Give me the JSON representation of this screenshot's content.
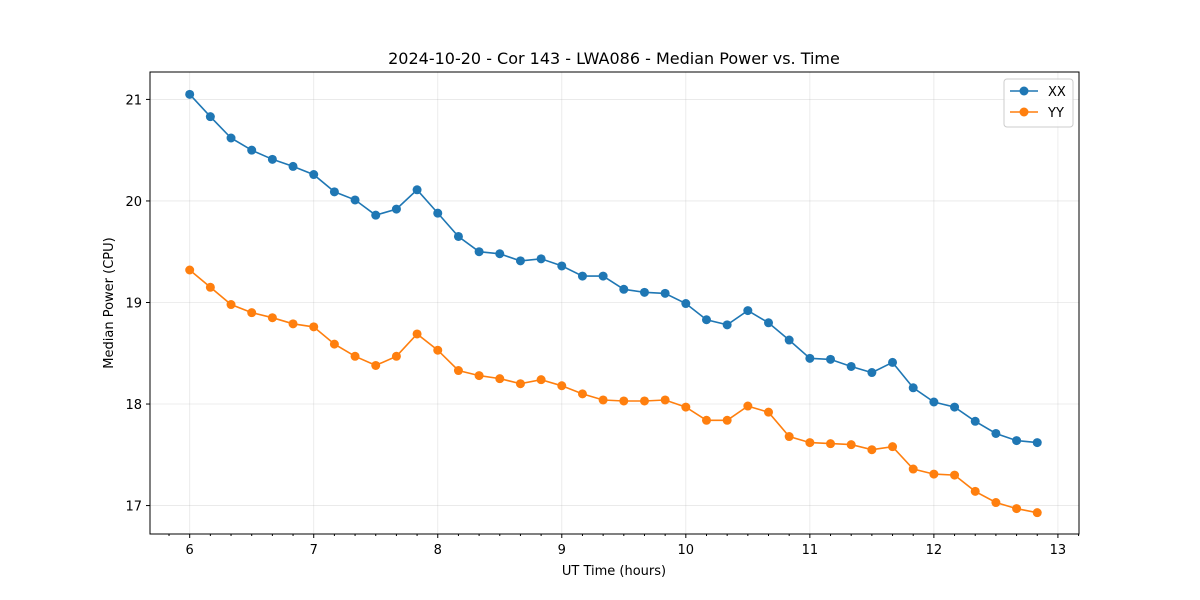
{
  "chart_data": {
    "type": "line",
    "title": "2024-10-20 - Cor 143 - LWA086 - Median Power vs. Time",
    "xlabel": "UT Time (hours)",
    "ylabel": "Median Power (CPU)",
    "xlim": [
      5.68,
      13.17
    ],
    "ylim": [
      16.72,
      21.27
    ],
    "xticks": [
      6,
      7,
      8,
      9,
      10,
      11,
      12,
      13
    ],
    "yticks": [
      17,
      18,
      19,
      20,
      21
    ],
    "grid": true,
    "legend_position": "top-right",
    "series": [
      {
        "name": "XX",
        "color": "#1f77b4",
        "x": [
          6.0,
          6.1667,
          6.3333,
          6.5,
          6.6667,
          6.8333,
          7.0,
          7.1667,
          7.3333,
          7.5,
          7.6667,
          7.8333,
          8.0,
          8.1667,
          8.3333,
          8.5,
          8.6667,
          8.8333,
          9.0,
          9.1667,
          9.3333,
          9.5,
          9.6667,
          9.8333,
          10.0,
          10.1667,
          10.3333,
          10.5,
          10.6667,
          10.8333,
          11.0,
          11.1667,
          11.3333,
          11.5,
          11.6667,
          11.8333,
          12.0,
          12.1667,
          12.3333,
          12.5,
          12.6667,
          12.8333
        ],
        "y": [
          21.05,
          20.83,
          20.62,
          20.5,
          20.41,
          20.34,
          20.26,
          20.09,
          20.01,
          19.86,
          19.92,
          20.11,
          19.88,
          19.65,
          19.5,
          19.48,
          19.41,
          19.43,
          19.36,
          19.26,
          19.26,
          19.13,
          19.1,
          19.09,
          18.99,
          18.83,
          18.78,
          18.92,
          18.8,
          18.63,
          18.45,
          18.44,
          18.37,
          18.31,
          18.41,
          18.16,
          18.02,
          17.97,
          17.83,
          17.71,
          17.64,
          17.62
        ]
      },
      {
        "name": "YY",
        "color": "#ff7f0e",
        "x": [
          6.0,
          6.1667,
          6.3333,
          6.5,
          6.6667,
          6.8333,
          7.0,
          7.1667,
          7.3333,
          7.5,
          7.6667,
          7.8333,
          8.0,
          8.1667,
          8.3333,
          8.5,
          8.6667,
          8.8333,
          9.0,
          9.1667,
          9.3333,
          9.5,
          9.6667,
          9.8333,
          10.0,
          10.1667,
          10.3333,
          10.5,
          10.6667,
          10.8333,
          11.0,
          11.1667,
          11.3333,
          11.5,
          11.6667,
          11.8333,
          12.0,
          12.1667,
          12.3333,
          12.5,
          12.6667,
          12.8333
        ],
        "y": [
          19.32,
          19.15,
          18.98,
          18.9,
          18.85,
          18.79,
          18.76,
          18.59,
          18.47,
          18.38,
          18.47,
          18.69,
          18.53,
          18.33,
          18.28,
          18.25,
          18.2,
          18.24,
          18.18,
          18.1,
          18.04,
          18.03,
          18.03,
          18.04,
          17.97,
          17.84,
          17.84,
          17.98,
          17.92,
          17.68,
          17.62,
          17.61,
          17.6,
          17.55,
          17.58,
          17.36,
          17.31,
          17.3,
          17.14,
          17.03,
          16.97,
          16.93
        ]
      }
    ]
  }
}
